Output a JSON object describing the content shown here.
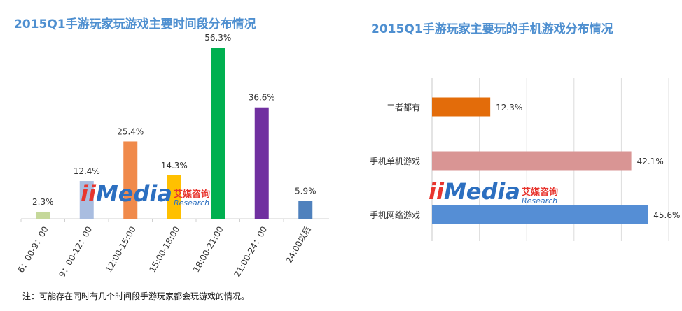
{
  "left_title": "2015Q1手游玩家玩游戏主要时间段分布情况",
  "right_title": "2015Q1手游玩家主要玩的手机游戏分布情况",
  "note": "注：可能存在同时有几个时间段手游玩家都会玩游戏的情况。",
  "watermark": {
    "mark": "ii",
    "word": "Media",
    "cn": "艾媒咨询",
    "en": "Research"
  },
  "chart_data": [
    {
      "type": "bar",
      "orientation": "vertical",
      "title": "2015Q1手游玩家玩游戏主要时间段分布情况",
      "categories": [
        "6：00-9：00",
        "9：00-12：00",
        "12:00-15:00",
        "15:00-18:00",
        "18:00-21:00",
        "21:00-24：00",
        "24:00以后"
      ],
      "values": [
        2.3,
        12.4,
        25.4,
        14.3,
        56.3,
        36.6,
        5.9
      ],
      "labels": [
        "2.3%",
        "12.4%",
        "25.4%",
        "14.3%",
        "56.3%",
        "36.6%",
        "5.9%"
      ],
      "colors": [
        "#c5d89a",
        "#a9bde0",
        "#f08a4b",
        "#ffc000",
        "#00b050",
        "#7030a0",
        "#4f81bd"
      ],
      "unit": "%",
      "ylim": [
        0,
        56.3
      ],
      "grid": false,
      "legend": "none"
    },
    {
      "type": "bar",
      "orientation": "horizontal",
      "title": "2015Q1手游玩家主要玩的手机游戏分布情况",
      "categories": [
        "二者都有",
        "手机单机游戏",
        "手机网络游戏"
      ],
      "values": [
        12.3,
        42.1,
        45.6
      ],
      "labels": [
        "12.3%",
        "42.1%",
        "45.6%"
      ],
      "colors": [
        "#e36c0a",
        "#d99594",
        "#558ed5"
      ],
      "unit": "%",
      "xlim": [
        0,
        50
      ],
      "grid": true,
      "legend": "none"
    }
  ]
}
